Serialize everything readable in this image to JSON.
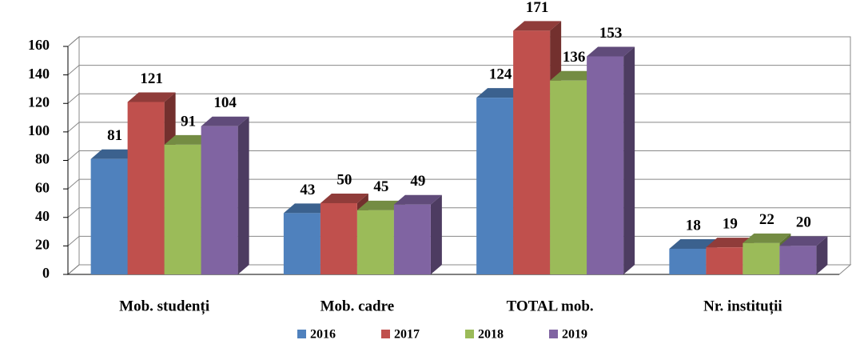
{
  "chart_data": {
    "type": "bar3d",
    "categories": [
      "Mob. studenți",
      "Mob. cadre",
      "TOTAL mob.",
      "Nr. instituții"
    ],
    "series": [
      {
        "name": "2016",
        "color": "#4f81bd",
        "values": [
          81,
          43,
          124,
          18
        ]
      },
      {
        "name": "2017",
        "color": "#c0504d",
        "values": [
          121,
          50,
          171,
          19
        ]
      },
      {
        "name": "2018",
        "color": "#9bbb59",
        "values": [
          91,
          45,
          136,
          22
        ]
      },
      {
        "name": "2019",
        "color": "#8064a2",
        "values": [
          104,
          49,
          153,
          20
        ]
      }
    ],
    "ylim": [
      0,
      160
    ],
    "yticks": [
      0,
      20,
      40,
      60,
      80,
      100,
      120,
      140,
      160
    ],
    "grid": true,
    "legend": "bottom"
  }
}
